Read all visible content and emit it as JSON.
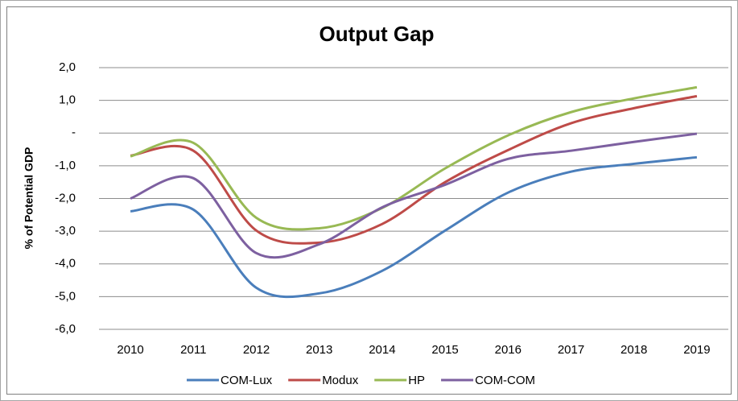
{
  "chart_data": {
    "type": "line",
    "title": "Output Gap",
    "y_label": "% of Potential GDP",
    "categories": [
      "2010",
      "2011",
      "2012",
      "2013",
      "2014",
      "2015",
      "2016",
      "2017",
      "2018",
      "2019"
    ],
    "ylim": [
      -6,
      2
    ],
    "yticks": [
      {
        "value": -6,
        "label": "-6,0"
      },
      {
        "value": -5,
        "label": "-5,0"
      },
      {
        "value": -4,
        "label": "-4,0"
      },
      {
        "value": -3,
        "label": "-3,0"
      },
      {
        "value": -2,
        "label": "-2,0"
      },
      {
        "value": -1,
        "label": "-1,0"
      },
      {
        "value": 0,
        "label": "-"
      },
      {
        "value": 1,
        "label": "1,0"
      },
      {
        "value": 2,
        "label": "2,0"
      }
    ],
    "grid": true,
    "legend": "bottom",
    "series": [
      {
        "name": "COM-Lux",
        "color": "#4a7ebb",
        "values": [
          -2.39,
          -2.34,
          -4.73,
          -4.9,
          -4.21,
          -2.98,
          -1.82,
          -1.18,
          -0.94,
          -0.74
        ]
      },
      {
        "name": "Modux",
        "color": "#be4b48",
        "values": [
          -0.69,
          -0.54,
          -2.98,
          -3.35,
          -2.78,
          -1.5,
          -0.52,
          0.3,
          0.76,
          1.13
        ]
      },
      {
        "name": "HP",
        "color": "#98b954",
        "values": [
          -0.71,
          -0.3,
          -2.59,
          -2.91,
          -2.29,
          -1.08,
          -0.07,
          0.64,
          1.06,
          1.4
        ]
      },
      {
        "name": "COM-COM",
        "color": "#7d60a0",
        "values": [
          -2.0,
          -1.38,
          -3.67,
          -3.4,
          -2.27,
          -1.58,
          -0.79,
          -0.54,
          -0.27,
          -0.02
        ]
      }
    ]
  }
}
